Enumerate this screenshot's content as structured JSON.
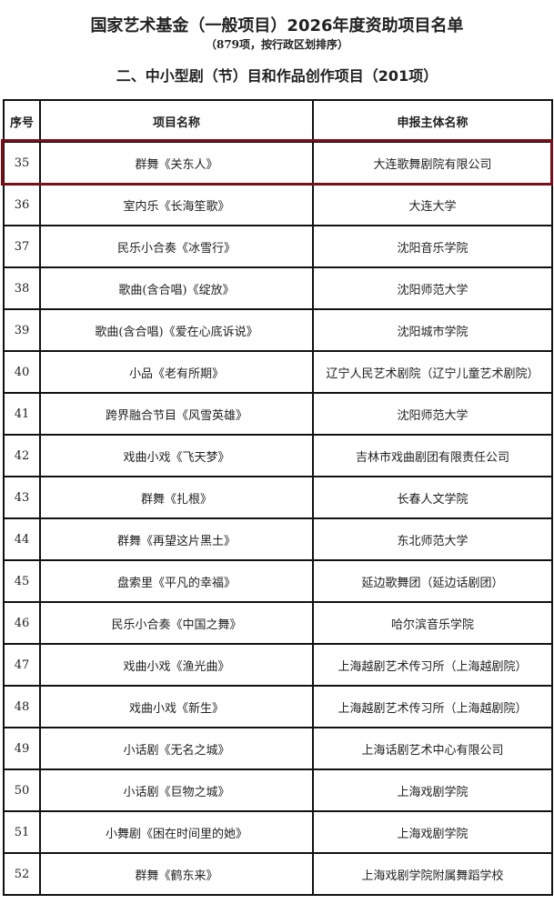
{
  "title": "国家艺术基金（一般项目）2026年度资助项目名单",
  "subtitle": "（879项，按行政区划排序）",
  "section": "二、中小型剧（节）目和作品创作项目（201项）",
  "highlight_color": "#7a0f1a",
  "table": {
    "headers": [
      "序号",
      "项目名称",
      "申报主体名称"
    ],
    "rows": [
      {
        "no": "35",
        "name": "群舞《关东人》",
        "org": "大连歌舞剧院有限公司",
        "highlighted": true
      },
      {
        "no": "36",
        "name": "室内乐《长海笙歌》",
        "org": "大连大学"
      },
      {
        "no": "37",
        "name": "民乐小合奏《冰雪行》",
        "org": "沈阳音乐学院"
      },
      {
        "no": "38",
        "name": "歌曲(含合唱)《绽放》",
        "org": "沈阳师范大学"
      },
      {
        "no": "39",
        "name": "歌曲(含合唱)《爱在心底诉说》",
        "org": "沈阳城市学院"
      },
      {
        "no": "40",
        "name": "小品《老有所期》",
        "org": "辽宁人民艺术剧院（辽宁儿童艺术剧院）"
      },
      {
        "no": "41",
        "name": "跨界融合节目《风雪英雄》",
        "org": "沈阳师范大学"
      },
      {
        "no": "42",
        "name": "戏曲小戏《飞天梦》",
        "org": "吉林市戏曲剧团有限责任公司"
      },
      {
        "no": "43",
        "name": "群舞《扎根》",
        "org": "长春人文学院"
      },
      {
        "no": "44",
        "name": "群舞《再望这片黑土》",
        "org": "东北师范大学"
      },
      {
        "no": "45",
        "name": "盘索里《平凡的幸福》",
        "org": "延边歌舞团（延边话剧团）"
      },
      {
        "no": "46",
        "name": "民乐小合奏《中国之舞》",
        "org": "哈尔滨音乐学院"
      },
      {
        "no": "47",
        "name": "戏曲小戏《渔光曲》",
        "org": "上海越剧艺术传习所（上海越剧院）"
      },
      {
        "no": "48",
        "name": "戏曲小戏《新生》",
        "org": "上海越剧艺术传习所（上海越剧院）"
      },
      {
        "no": "49",
        "name": "小话剧《无名之城》",
        "org": "上海话剧艺术中心有限公司"
      },
      {
        "no": "50",
        "name": "小话剧《巨物之城》",
        "org": "上海戏剧学院"
      },
      {
        "no": "51",
        "name": "小舞剧《困在时间里的她》",
        "org": "上海戏剧学院"
      },
      {
        "no": "52",
        "name": "群舞《鹤东来》",
        "org": "上海戏剧学院附属舞蹈学校"
      }
    ]
  }
}
